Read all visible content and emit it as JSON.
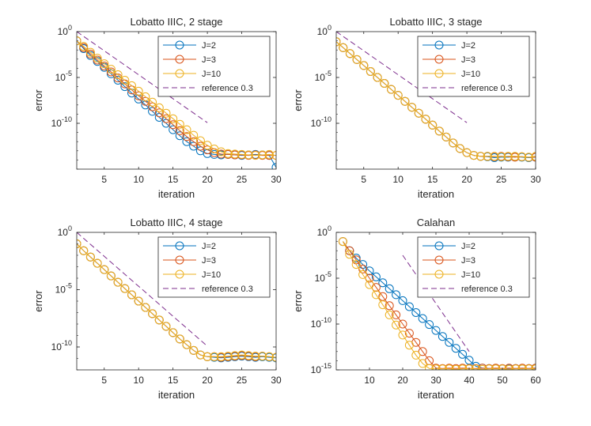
{
  "colors": {
    "J2": "#0072BD",
    "J3": "#D95319",
    "J10": "#EDB120",
    "ref": "#7E2F8E",
    "axis": "#262626"
  },
  "chart_data": [
    {
      "type": "line",
      "title": "Lobatto IIIC, 2 stage",
      "xlabel": "iteration",
      "ylabel": "error",
      "yscale": "log",
      "xlim": [
        1,
        30
      ],
      "ylim_log10": [
        -15,
        0
      ],
      "xticks": [
        5,
        10,
        15,
        20,
        25,
        30
      ],
      "yticks": [
        {
          "value": 0,
          "label": "10^0"
        },
        {
          "value": -5,
          "label": "10^-5"
        },
        {
          "value": -10,
          "label": "10^-10"
        }
      ],
      "legend_position": "top-right",
      "series": [
        {
          "name": "J=2",
          "color_key": "J2",
          "marker": "o",
          "x": [
            1,
            2,
            3,
            4,
            5,
            6,
            7,
            8,
            9,
            10,
            11,
            12,
            13,
            14,
            15,
            16,
            17,
            18,
            19,
            20,
            21,
            22,
            23,
            24,
            25,
            26,
            27,
            28,
            29,
            30
          ],
          "log10_error": [
            -1.0,
            -1.85,
            -2.6,
            -3.25,
            -3.9,
            -4.6,
            -5.3,
            -6.0,
            -6.7,
            -7.35,
            -8.0,
            -8.7,
            -9.35,
            -10.0,
            -10.7,
            -11.35,
            -12.0,
            -12.5,
            -13.0,
            -13.3,
            -13.4,
            -13.45,
            -13.4,
            -13.45,
            -13.5,
            -13.45,
            -13.4,
            -13.45,
            -13.5,
            -14.8
          ]
        },
        {
          "name": "J=3",
          "color_key": "J3",
          "marker": "o",
          "x": [
            1,
            2,
            3,
            4,
            5,
            6,
            7,
            8,
            9,
            10,
            11,
            12,
            13,
            14,
            15,
            16,
            17,
            18,
            19,
            20,
            21,
            22,
            23,
            24,
            25,
            26,
            27,
            28,
            29,
            30
          ],
          "log10_error": [
            -1.0,
            -1.75,
            -2.45,
            -3.1,
            -3.75,
            -4.4,
            -5.05,
            -5.7,
            -6.35,
            -7.0,
            -7.6,
            -8.2,
            -8.85,
            -9.5,
            -10.15,
            -10.8,
            -11.45,
            -12.0,
            -12.5,
            -12.9,
            -13.2,
            -13.35,
            -13.4,
            -13.45,
            -13.45,
            -13.5,
            -13.45,
            -13.5,
            -13.5,
            -13.5
          ]
        },
        {
          "name": "J=10",
          "color_key": "J10",
          "marker": "o",
          "x": [
            1,
            2,
            3,
            4,
            5,
            6,
            7,
            8,
            9,
            10,
            11,
            12,
            13,
            14,
            15,
            16,
            17,
            18,
            19,
            20,
            21,
            22,
            23,
            24,
            25,
            26,
            27,
            28,
            29,
            30
          ],
          "log10_error": [
            -1.0,
            -1.6,
            -2.25,
            -2.9,
            -3.5,
            -4.1,
            -4.7,
            -5.3,
            -5.9,
            -6.5,
            -7.1,
            -7.7,
            -8.3,
            -8.9,
            -9.5,
            -10.1,
            -10.7,
            -11.3,
            -11.9,
            -12.4,
            -12.8,
            -13.1,
            -13.3,
            -13.35,
            -13.4,
            -13.45,
            -13.5,
            -13.45,
            -13.4,
            -13.5
          ]
        },
        {
          "name": "reference 0.3",
          "color_key": "ref",
          "style": "dashed",
          "x": [
            1,
            20
          ],
          "log10_error": [
            0,
            -9.93
          ]
        }
      ]
    },
    {
      "type": "line",
      "title": "Lobatto IIIC, 3 stage",
      "xlabel": "iteration",
      "ylabel": "error",
      "yscale": "log",
      "xlim": [
        1,
        30
      ],
      "ylim_log10": [
        -15,
        0
      ],
      "xticks": [
        5,
        10,
        15,
        20,
        25,
        30
      ],
      "yticks": [
        {
          "value": 0,
          "label": "10^0"
        },
        {
          "value": -5,
          "label": "10^-5"
        },
        {
          "value": -10,
          "label": "10^-10"
        }
      ],
      "legend_position": "top-right",
      "series": [
        {
          "name": "J=2",
          "color_key": "J2",
          "marker": "o",
          "x": [
            1,
            2,
            3,
            4,
            5,
            6,
            7,
            8,
            9,
            10,
            11,
            12,
            13,
            14,
            15,
            16,
            17,
            18,
            19,
            20,
            21,
            22,
            23,
            24,
            25,
            26,
            27,
            28,
            29,
            30
          ],
          "log10_error": [
            -1.1,
            -1.75,
            -2.4,
            -3.05,
            -3.7,
            -4.35,
            -5.0,
            -5.65,
            -6.3,
            -6.95,
            -7.6,
            -8.25,
            -8.9,
            -9.55,
            -10.2,
            -10.85,
            -11.5,
            -12.15,
            -12.75,
            -13.2,
            -13.5,
            -13.6,
            -13.65,
            -13.75,
            -13.7,
            -13.7,
            -13.65,
            -13.7,
            -13.75,
            -13.7
          ]
        },
        {
          "name": "J=3",
          "color_key": "J3",
          "marker": "o",
          "x": [
            1,
            2,
            3,
            4,
            5,
            6,
            7,
            8,
            9,
            10,
            11,
            12,
            13,
            14,
            15,
            16,
            17,
            18,
            19,
            20,
            21,
            22,
            23,
            24,
            25,
            26,
            27,
            28,
            29,
            30
          ],
          "log10_error": [
            -1.1,
            -1.75,
            -2.4,
            -3.05,
            -3.7,
            -4.35,
            -5.0,
            -5.65,
            -6.3,
            -6.95,
            -7.6,
            -8.25,
            -8.9,
            -9.55,
            -10.2,
            -10.85,
            -11.5,
            -12.15,
            -12.75,
            -13.2,
            -13.5,
            -13.6,
            -13.6,
            -13.65,
            -13.6,
            -13.65,
            -13.7,
            -13.65,
            -13.7,
            -13.7
          ]
        },
        {
          "name": "J=10",
          "color_key": "J10",
          "marker": "o",
          "x": [
            1,
            2,
            3,
            4,
            5,
            6,
            7,
            8,
            9,
            10,
            11,
            12,
            13,
            14,
            15,
            16,
            17,
            18,
            19,
            20,
            21,
            22,
            23,
            24,
            25,
            26,
            27,
            28,
            29,
            30
          ],
          "log10_error": [
            -1.1,
            -1.75,
            -2.4,
            -3.05,
            -3.7,
            -4.35,
            -5.0,
            -5.65,
            -6.3,
            -6.95,
            -7.6,
            -8.25,
            -8.9,
            -9.55,
            -10.2,
            -10.85,
            -11.5,
            -12.15,
            -12.75,
            -13.2,
            -13.5,
            -13.6,
            -13.6,
            -13.6,
            -13.65,
            -13.6,
            -13.6,
            -13.65,
            -13.7,
            -13.6
          ]
        },
        {
          "name": "reference 0.3",
          "color_key": "ref",
          "style": "dashed",
          "x": [
            1,
            20
          ],
          "log10_error": [
            0,
            -9.93
          ]
        }
      ]
    },
    {
      "type": "line",
      "title": "Lobatto IIIC, 4 stage",
      "xlabel": "iteration",
      "ylabel": "error",
      "yscale": "log",
      "xlim": [
        1,
        30
      ],
      "ylim_log10": [
        -12,
        0
      ],
      "xticks": [
        5,
        10,
        15,
        20,
        25,
        30
      ],
      "yticks": [
        {
          "value": 0,
          "label": "10^0"
        },
        {
          "value": -5,
          "label": "10^-5"
        },
        {
          "value": -10,
          "label": "10^-10"
        }
      ],
      "legend_position": "top-right",
      "series": [
        {
          "name": "J=2",
          "color_key": "J2",
          "marker": "o",
          "x": [
            1,
            2,
            3,
            4,
            5,
            6,
            7,
            8,
            9,
            10,
            11,
            12,
            13,
            14,
            15,
            16,
            17,
            18,
            19,
            20,
            21,
            22,
            23,
            24,
            25,
            26,
            27,
            28,
            29,
            30
          ],
          "log10_error": [
            -1.0,
            -1.6,
            -2.15,
            -2.7,
            -3.25,
            -3.8,
            -4.35,
            -4.9,
            -5.45,
            -6.0,
            -6.55,
            -7.1,
            -7.65,
            -8.2,
            -8.75,
            -9.3,
            -9.8,
            -10.3,
            -10.7,
            -10.85,
            -10.9,
            -10.95,
            -10.9,
            -10.85,
            -10.8,
            -10.85,
            -10.9,
            -10.85,
            -10.9,
            -10.95
          ]
        },
        {
          "name": "J=3",
          "color_key": "J3",
          "marker": "o",
          "x": [
            1,
            2,
            3,
            4,
            5,
            6,
            7,
            8,
            9,
            10,
            11,
            12,
            13,
            14,
            15,
            16,
            17,
            18,
            19,
            20,
            21,
            22,
            23,
            24,
            25,
            26,
            27,
            28,
            29,
            30
          ],
          "log10_error": [
            -1.0,
            -1.6,
            -2.15,
            -2.7,
            -3.25,
            -3.8,
            -4.35,
            -4.9,
            -5.45,
            -6.0,
            -6.55,
            -7.1,
            -7.65,
            -8.2,
            -8.75,
            -9.3,
            -9.8,
            -10.3,
            -10.7,
            -10.85,
            -10.85,
            -10.9,
            -10.85,
            -10.8,
            -10.75,
            -10.8,
            -10.85,
            -10.8,
            -10.85,
            -10.9
          ]
        },
        {
          "name": "J=10",
          "color_key": "J10",
          "marker": "o",
          "x": [
            1,
            2,
            3,
            4,
            5,
            6,
            7,
            8,
            9,
            10,
            11,
            12,
            13,
            14,
            15,
            16,
            17,
            18,
            19,
            20,
            21,
            22,
            23,
            24,
            25,
            26,
            27,
            28,
            29,
            30
          ],
          "log10_error": [
            -1.0,
            -1.6,
            -2.15,
            -2.7,
            -3.25,
            -3.8,
            -4.35,
            -4.9,
            -5.45,
            -6.0,
            -6.55,
            -7.1,
            -7.65,
            -8.2,
            -8.75,
            -9.3,
            -9.8,
            -10.3,
            -10.7,
            -10.85,
            -10.85,
            -10.85,
            -10.8,
            -10.75,
            -10.7,
            -10.75,
            -10.8,
            -10.8,
            -10.85,
            -10.9
          ]
        },
        {
          "name": "reference 0.3",
          "color_key": "ref",
          "style": "dashed",
          "x": [
            1,
            20
          ],
          "log10_error": [
            0,
            -9.93
          ]
        }
      ]
    },
    {
      "type": "line",
      "title": "Calahan",
      "xlabel": "iteration",
      "ylabel": "error",
      "yscale": "log",
      "xlim": [
        0,
        60
      ],
      "ylim_log10": [
        -15,
        0
      ],
      "xticks": [
        10,
        20,
        30,
        40,
        50,
        60
      ],
      "yticks": [
        {
          "value": 0,
          "label": "10^0"
        },
        {
          "value": -5,
          "label": "10^-5"
        },
        {
          "value": -10,
          "label": "10^-10"
        },
        {
          "value": -15,
          "label": "10^-15"
        }
      ],
      "legend_position": "top-right",
      "series": [
        {
          "name": "J=2",
          "color_key": "J2",
          "marker": "o",
          "x": [
            2,
            4,
            6,
            8,
            10,
            12,
            14,
            16,
            18,
            20,
            22,
            24,
            26,
            28,
            30,
            32,
            34,
            36,
            38,
            40,
            42,
            44,
            46,
            48,
            50,
            52,
            54,
            56,
            58,
            60
          ],
          "log10_error": [
            -1.0,
            -2.0,
            -2.8,
            -3.5,
            -4.2,
            -4.85,
            -5.5,
            -6.15,
            -6.8,
            -7.45,
            -8.1,
            -8.75,
            -9.4,
            -10.05,
            -10.7,
            -11.35,
            -12.0,
            -12.65,
            -13.3,
            -13.95,
            -14.6,
            -14.8,
            -14.85,
            -14.85,
            -14.9,
            -14.85,
            -14.85,
            -14.9,
            -14.85,
            -14.8
          ]
        },
        {
          "name": "J=3",
          "color_key": "J3",
          "marker": "o",
          "x": [
            2,
            4,
            6,
            8,
            10,
            12,
            14,
            16,
            18,
            20,
            22,
            24,
            26,
            28,
            30,
            32,
            34,
            36,
            38,
            40,
            42,
            44,
            46,
            48,
            50,
            52,
            54,
            56,
            58,
            60
          ],
          "log10_error": [
            -1.0,
            -2.0,
            -3.0,
            -4.0,
            -5.0,
            -6.0,
            -7.0,
            -8.0,
            -9.0,
            -10.0,
            -11.0,
            -12.0,
            -13.0,
            -14.0,
            -14.8,
            -14.85,
            -14.8,
            -14.85,
            -14.8,
            -14.85,
            -14.85,
            -14.8,
            -14.85,
            -14.8,
            -14.85,
            -14.8,
            -14.85,
            -14.8,
            -14.85,
            -14.8
          ]
        },
        {
          "name": "J=10",
          "color_key": "J10",
          "marker": "o",
          "x": [
            2,
            4,
            6,
            8,
            10,
            12,
            14,
            16,
            18,
            20,
            22,
            24,
            26,
            28,
            30,
            32,
            34,
            36,
            38,
            40,
            42,
            44,
            46,
            48,
            50,
            52,
            54,
            56,
            58,
            60
          ],
          "log10_error": [
            -1.0,
            -2.4,
            -3.5,
            -4.6,
            -5.7,
            -6.8,
            -7.9,
            -9.0,
            -10.1,
            -11.2,
            -12.3,
            -13.4,
            -14.3,
            -14.85,
            -14.9,
            -14.9,
            -14.9,
            -14.95,
            -14.9,
            -14.9,
            -14.9,
            -14.95,
            -14.9,
            -14.9,
            -14.9,
            -14.95,
            -14.9,
            -14.9,
            -14.9,
            -14.9
          ]
        },
        {
          "name": "reference 0.3",
          "color_key": "ref",
          "style": "dashed",
          "x": [
            20,
            40
          ],
          "log10_error": [
            -2.5,
            -13.0
          ]
        }
      ]
    }
  ]
}
